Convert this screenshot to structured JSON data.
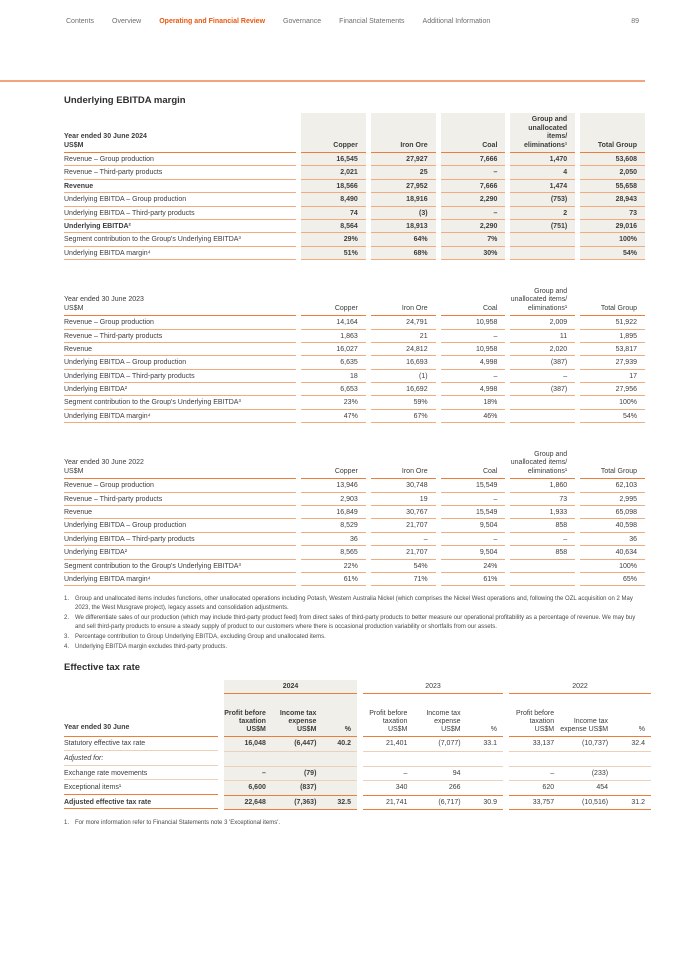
{
  "nav": {
    "items": [
      "Contents",
      "Overview",
      "Operating and Financial Review",
      "Governance",
      "Financial Statements",
      "Additional Information"
    ],
    "active_index": 2,
    "page_number": "89"
  },
  "colors": {
    "accent": "#e9570e",
    "rule_top": "#f2a47c",
    "line_strong": "#ed7d3a",
    "line_light": "#f3aa7c",
    "line_thin": "#edd0b8",
    "shade": "#f1efe9",
    "text": "#3d3d3d",
    "nav_grey": "#6e6e6e",
    "fn_grey": "#494949"
  },
  "section1": {
    "title": "Underlying EBITDA margin",
    "tables": [
      {
        "year_label": "Year ended 30 June 2024",
        "unit_label": "US$M",
        "highlight": true,
        "columns": [
          "Copper",
          "Iron Ore",
          "Coal",
          "Group and unallocated items/ eliminations¹",
          "Total Group"
        ],
        "rows": [
          {
            "label": "Revenue – Group production",
            "bold": false,
            "values": [
              "16,545",
              "27,927",
              "7,666",
              "1,470",
              "53,608"
            ]
          },
          {
            "label": "Revenue – Third-party products",
            "bold": false,
            "values": [
              "2,021",
              "25",
              "–",
              "4",
              "2,050"
            ]
          },
          {
            "label": "Revenue",
            "bold": true,
            "values": [
              "18,566",
              "27,952",
              "7,666",
              "1,474",
              "55,658"
            ]
          },
          {
            "label": "Underlying EBITDA – Group production",
            "bold": false,
            "values": [
              "8,490",
              "18,916",
              "2,290",
              "(753)",
              "28,943"
            ]
          },
          {
            "label": "Underlying EBITDA – Third-party products",
            "bold": false,
            "values": [
              "74",
              "(3)",
              "–",
              "2",
              "73"
            ]
          },
          {
            "label": "Underlying EBITDA²",
            "bold": true,
            "values": [
              "8,564",
              "18,913",
              "2,290",
              "(751)",
              "29,016"
            ]
          },
          {
            "label": "Segment contribution to the Group's Underlying EBITDA³",
            "bold": false,
            "values": [
              "29%",
              "64%",
              "7%",
              "",
              "100%"
            ]
          },
          {
            "label": "Underlying EBITDA margin⁴",
            "bold": false,
            "values": [
              "51%",
              "68%",
              "30%",
              "",
              "54%"
            ]
          }
        ]
      },
      {
        "year_label": "Year ended 30 June 2023",
        "unit_label": "US$M",
        "highlight": false,
        "columns": [
          "Copper",
          "Iron Ore",
          "Coal",
          "Group and unallocated items/ eliminations¹",
          "Total Group"
        ],
        "rows": [
          {
            "label": "Revenue – Group production",
            "bold": false,
            "values": [
              "14,164",
              "24,791",
              "10,958",
              "2,009",
              "51,922"
            ]
          },
          {
            "label": "Revenue – Third-party products",
            "bold": false,
            "values": [
              "1,863",
              "21",
              "–",
              "11",
              "1,895"
            ]
          },
          {
            "label": "Revenue",
            "bold": false,
            "values": [
              "16,027",
              "24,812",
              "10,958",
              "2,020",
              "53,817"
            ]
          },
          {
            "label": "Underlying EBITDA – Group production",
            "bold": false,
            "values": [
              "6,635",
              "16,693",
              "4,998",
              "(387)",
              "27,939"
            ]
          },
          {
            "label": "Underlying EBITDA – Third-party products",
            "bold": false,
            "values": [
              "18",
              "(1)",
              "–",
              "–",
              "17"
            ]
          },
          {
            "label": "Underlying EBITDA²",
            "bold": false,
            "values": [
              "6,653",
              "16,692",
              "4,998",
              "(387)",
              "27,956"
            ]
          },
          {
            "label": "Segment contribution to the Group's Underlying EBITDA³",
            "bold": false,
            "values": [
              "23%",
              "59%",
              "18%",
              "",
              "100%"
            ]
          },
          {
            "label": "Underlying EBITDA margin⁴",
            "bold": false,
            "values": [
              "47%",
              "67%",
              "46%",
              "",
              "54%"
            ]
          }
        ]
      },
      {
        "year_label": "Year ended 30 June 2022",
        "unit_label": "US$M",
        "highlight": false,
        "columns": [
          "Copper",
          "Iron Ore",
          "Coal",
          "Group and unallocated items/ eliminations¹",
          "Total Group"
        ],
        "rows": [
          {
            "label": "Revenue – Group production",
            "bold": false,
            "values": [
              "13,946",
              "30,748",
              "15,549",
              "1,860",
              "62,103"
            ]
          },
          {
            "label": "Revenue – Third-party products",
            "bold": false,
            "values": [
              "2,903",
              "19",
              "–",
              "73",
              "2,995"
            ]
          },
          {
            "label": "Revenue",
            "bold": false,
            "values": [
              "16,849",
              "30,767",
              "15,549",
              "1,933",
              "65,098"
            ]
          },
          {
            "label": "Underlying EBITDA – Group production",
            "bold": false,
            "values": [
              "8,529",
              "21,707",
              "9,504",
              "858",
              "40,598"
            ]
          },
          {
            "label": "Underlying EBITDA – Third-party products",
            "bold": false,
            "values": [
              "36",
              "–",
              "–",
              "–",
              "36"
            ]
          },
          {
            "label": "Underlying EBITDA²",
            "bold": false,
            "values": [
              "8,565",
              "21,707",
              "9,504",
              "858",
              "40,634"
            ]
          },
          {
            "label": "Segment contribution to the Group's Underlying EBITDA³",
            "bold": false,
            "values": [
              "22%",
              "54%",
              "24%",
              "",
              "100%"
            ]
          },
          {
            "label": "Underlying EBITDA margin⁴",
            "bold": false,
            "values": [
              "61%",
              "71%",
              "61%",
              "",
              "65%"
            ]
          }
        ]
      }
    ],
    "footnotes": [
      {
        "num": "1.",
        "text": "Group and unallocated items includes functions, other unallocated operations including Potash, Western Australia Nickel (which comprises the Nickel West operations and, following the OZL acquisition on 2 May 2023, the West Musgrave project), legacy assets and consolidation adjustments."
      },
      {
        "num": "2.",
        "text": "We differentiate sales of our production (which may include third-party product feed) from direct sales of third-party products to better measure our operational profitability as a percentage of revenue. We may buy and sell third-party products to ensure a steady supply of product to our customers where there is occasional production variability or shortfalls from our assets."
      },
      {
        "num": "3.",
        "text": "Percentage contribution to Group Underlying EBITDA, excluding Group and unallocated items."
      },
      {
        "num": "4.",
        "text": "Underlying EBITDA margin excludes third-party products."
      }
    ]
  },
  "section2": {
    "title": "Effective tax rate",
    "row_header": "Year ended 30 June",
    "sub_columns": [
      "Profit before taxation US$M",
      "Income tax expense US$M",
      "%"
    ],
    "groups": [
      {
        "year": "2024",
        "highlight": true
      },
      {
        "year": "2023",
        "highlight": false
      },
      {
        "year": "2022",
        "highlight": false
      }
    ],
    "rows": [
      {
        "label": "Statutory effective tax rate",
        "bold": false,
        "italic": false,
        "values": [
          [
            "16,048",
            "(6,447)",
            "40.2"
          ],
          [
            "21,401",
            "(7,077)",
            "33.1"
          ],
          [
            "33,137",
            "(10,737)",
            "32.4"
          ]
        ]
      },
      {
        "label": "Adjusted for:",
        "bold": false,
        "italic": true,
        "values": [
          [
            "",
            "",
            ""
          ],
          [
            "",
            "",
            ""
          ],
          [
            "",
            "",
            ""
          ]
        ]
      },
      {
        "label": "Exchange rate movements",
        "bold": false,
        "italic": false,
        "values": [
          [
            "–",
            "(79)",
            ""
          ],
          [
            "–",
            "94",
            ""
          ],
          [
            "–",
            "(233)",
            ""
          ]
        ]
      },
      {
        "label": "Exceptional items¹",
        "bold": false,
        "italic": false,
        "values": [
          [
            "6,600",
            "(837)",
            ""
          ],
          [
            "340",
            "266",
            ""
          ],
          [
            "620",
            "454",
            ""
          ]
        ]
      },
      {
        "label": "Adjusted effective tax rate",
        "bold": true,
        "italic": false,
        "values": [
          [
            "22,648",
            "(7,363)",
            "32.5"
          ],
          [
            "21,741",
            "(6,717)",
            "30.9"
          ],
          [
            "33,757",
            "(10,516)",
            "31.2"
          ]
        ]
      }
    ],
    "footnote": {
      "num": "1.",
      "text": "For more information refer to Financial Statements note 3 'Exceptional items'."
    }
  }
}
